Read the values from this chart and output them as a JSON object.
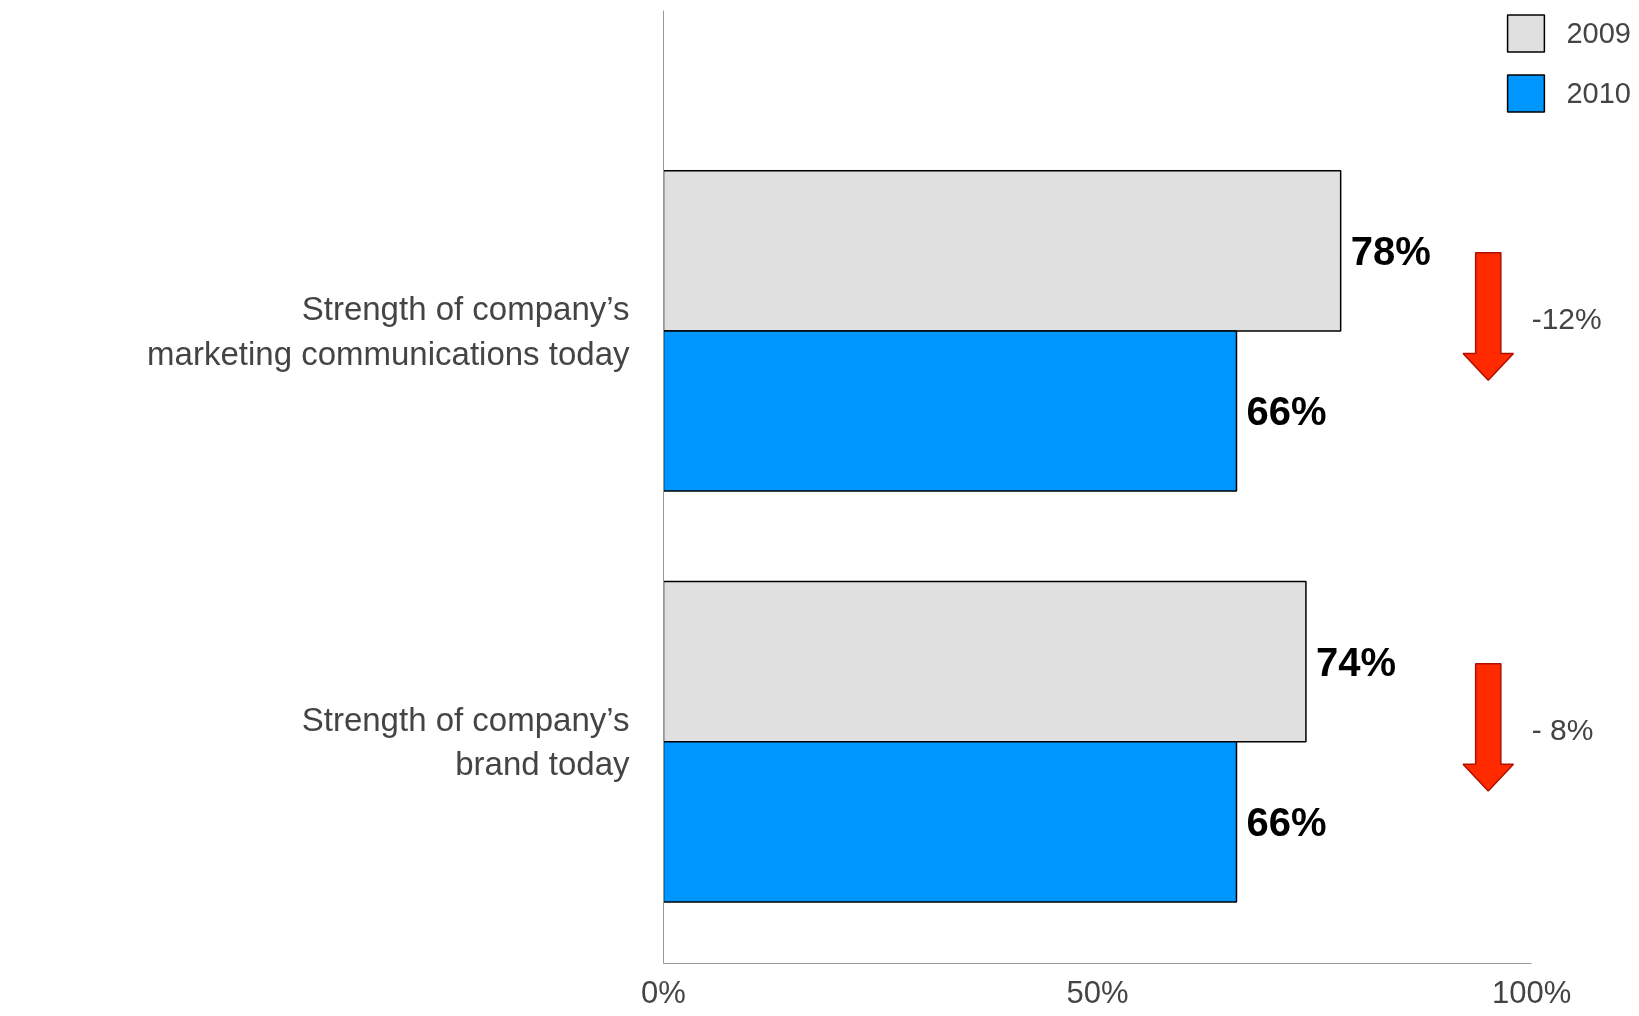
{
  "chart_data": {
    "type": "bar",
    "orientation": "horizontal",
    "categories": [
      "Strength of company’s\nmarketing communications today",
      "Strength of company’s\nbrand today"
    ],
    "series": [
      {
        "name": "2009",
        "color": "#e0e0e0",
        "values": [
          78,
          74
        ],
        "value_labels": [
          "78%",
          "74%"
        ]
      },
      {
        "name": "2010",
        "color": "#0096ff",
        "values": [
          66,
          66
        ],
        "value_labels": [
          "66%",
          "66%"
        ]
      }
    ],
    "xlim": [
      0,
      100
    ],
    "xticks": [
      {
        "value": 0,
        "label": "0%"
      },
      {
        "value": 50,
        "label": "50%"
      },
      {
        "value": 100,
        "label": "100%"
      }
    ],
    "legend": "top right",
    "grid": false,
    "annotations": [
      "-12%",
      "- 8%"
    ]
  }
}
